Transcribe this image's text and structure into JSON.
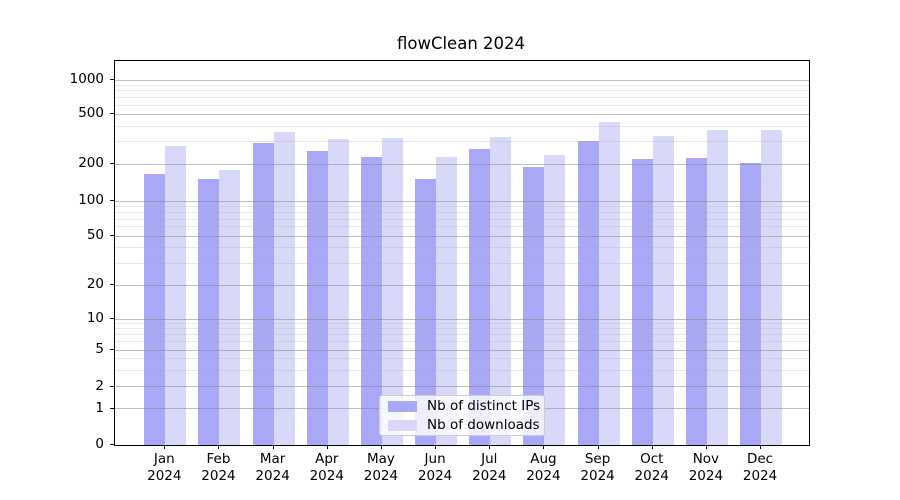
{
  "title": "flowClean 2024",
  "chart_data": {
    "type": "bar",
    "title": "flowClean 2024",
    "y_scale": "symlog-asinh",
    "ylim": [
      0,
      1400
    ],
    "grid": "horizontal major and minor gridlines",
    "legend_position": "lower center inside plot",
    "y_ticks": [
      0,
      1,
      2,
      5,
      10,
      20,
      50,
      100,
      200,
      500,
      1000
    ],
    "categories": [
      {
        "month": "Jan",
        "year": "2024"
      },
      {
        "month": "Feb",
        "year": "2024"
      },
      {
        "month": "Mar",
        "year": "2024"
      },
      {
        "month": "Apr",
        "year": "2024"
      },
      {
        "month": "May",
        "year": "2024"
      },
      {
        "month": "Jun",
        "year": "2024"
      },
      {
        "month": "Jul",
        "year": "2024"
      },
      {
        "month": "Aug",
        "year": "2024"
      },
      {
        "month": "Sep",
        "year": "2024"
      },
      {
        "month": "Oct",
        "year": "2024"
      },
      {
        "month": "Nov",
        "year": "2024"
      },
      {
        "month": "Dec",
        "year": "2024"
      }
    ],
    "series": [
      {
        "name": "Nb of distinct IPs",
        "color": "#a8a8f6",
        "values": [
          165,
          152,
          292,
          254,
          227,
          152,
          262,
          190,
          305,
          219,
          224,
          205
        ]
      },
      {
        "name": "Nb of downloads",
        "color": "#d8d8f8",
        "values": [
          278,
          178,
          360,
          315,
          324,
          227,
          330,
          234,
          432,
          332,
          373,
          373
        ]
      }
    ]
  },
  "colors": {
    "background": "#ffffff",
    "bar_distinct_ips": "#a8a8f6",
    "bar_downloads": "#d8d8f8",
    "grid_major": "#808080",
    "grid_minor": "#aaaaaa",
    "axis": "#000000",
    "legend_border": "#cccccc"
  }
}
